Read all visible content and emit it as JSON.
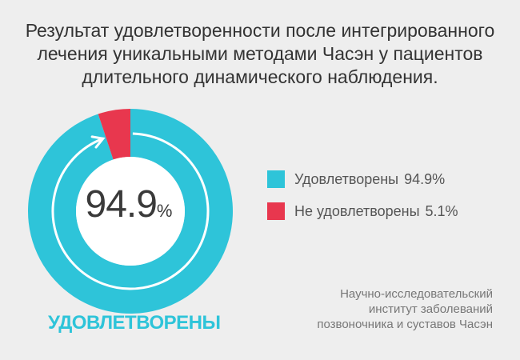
{
  "chart_data": {
    "type": "pie",
    "title_lines": [
      "Результат удовлетворенности после интегрированного",
      "лечения уникальными методами Часэн у пациентов",
      "длительного динамического наблюдения."
    ],
    "slices": [
      {
        "label": "Удовлетворены",
        "value": 94.9,
        "value_label": "94.9%",
        "color": "#2ec4d9"
      },
      {
        "label": "Не удовлетворены",
        "value": 5.1,
        "value_label": "5.1%",
        "color": "#e8374e"
      }
    ],
    "center_value": "94.9",
    "center_unit": "%",
    "summary_label": "УДОВЛЕТВОРЕНЫ",
    "legend_position": "right"
  },
  "source_lines": [
    "Научно-исследовательский",
    "институт заболеваний",
    "позвоночника и суставов Часэн"
  ],
  "colors": {
    "background": "#eeeeee",
    "summary_text": "#2ec4d9"
  }
}
